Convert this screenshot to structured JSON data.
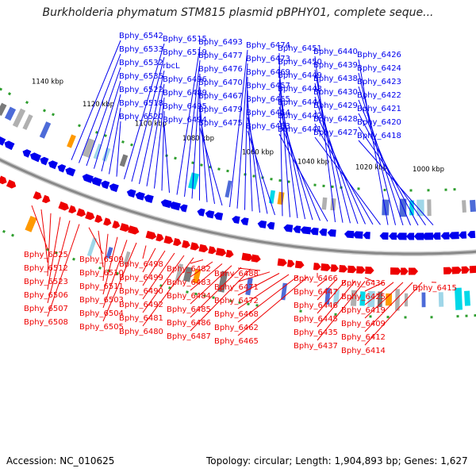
{
  "title": "Burkholderia phymatum STM815 plasmid pBPHY01, complete seque...",
  "footer": {
    "accession": "Accession: NC_010625",
    "summary": "Topology: circular; Length: 1,904,893 bp; Genes: 1,627"
  },
  "colors": {
    "forward": "#0000ee",
    "reverse": "#ee0000",
    "backbone": "#888888",
    "feature_green": "#2e9e2e",
    "feature_cyan": "#00d8e8",
    "feature_orange": "#ff9900",
    "feature_gray": "#b0b0b0"
  },
  "scale_labels": [
    "1140 kbp",
    "1120 kbp",
    "1100 kbp",
    "1080 kbp",
    "1060 kbp",
    "1040 kbp",
    "1020 kbp",
    "1000 kbp"
  ],
  "top_labels": [
    "Bphy_6542",
    "Bphy_6533",
    "Bphy_6532",
    "Bphy_6535",
    "Bphy_6522",
    "Bphy_6518",
    "Bphy_6520",
    "Bphy_6515",
    "Bphy_6519",
    "rbcL",
    "Bphy_6496",
    "Bphy_6489",
    "Bphy_6495",
    "Bphy_6494",
    "Bphy_6493",
    "Bphy_6477",
    "Bphy_6476",
    "Bphy_6470",
    "Bphy_6467",
    "Bphy_6479",
    "Bphy_6475",
    "Bphy_6474",
    "Bphy_6473",
    "Bphy_6469",
    "Bphy_6457",
    "Bphy_6455",
    "Bphy_6454",
    "Bphy_6453",
    "Bphy_6451",
    "Bphy_6450",
    "Bphy_6449",
    "Bphy_6448",
    "Bphy_6444",
    "Bphy_6442",
    "Bphy_6441",
    "Bphy_6440",
    "Bphy_6439",
    "Bphy_6438",
    "Bphy_6430",
    "Bphy_6429",
    "Bphy_6428",
    "Bphy_6427",
    "Bphy_6426",
    "Bphy_6424",
    "Bphy_6423",
    "Bphy_6422",
    "Bphy_6421",
    "Bphy_6420",
    "Bphy_6418"
  ],
  "bottom_labels": [
    "Bphy_6525",
    "Bphy_6512",
    "Bphy_6523",
    "Bphy_6506",
    "Bphy_6507",
    "Bphy_6508",
    "Bphy_6509",
    "Bphy_6510",
    "Bphy_6511",
    "Bphy_6503",
    "Bphy_6504",
    "Bphy_6505",
    "Bphy_6498",
    "Bphy_6499",
    "Bphy_6490",
    "Bphy_6492",
    "Bphy_6481",
    "Bphy_6480",
    "Bphy_6482",
    "Bphy_6483",
    "Bphy_6484",
    "Bphy_6485",
    "Bphy_6486",
    "Bphy_6487",
    "Bphy_6488",
    "Bphy_6471",
    "Bphy_6472",
    "Bphy_6468",
    "Bphy_6462",
    "Bphy_6465",
    "Bphy_6466",
    "Bphy_6447",
    "Bphy_6446",
    "Bphy_6445",
    "Bphy_6435",
    "Bphy_6437",
    "Bphy_6436",
    "Bphy_6425",
    "Bphy_6419",
    "Bphy_6409",
    "Bphy_6412",
    "Bphy_6414",
    "Bphy_6415"
  ]
}
